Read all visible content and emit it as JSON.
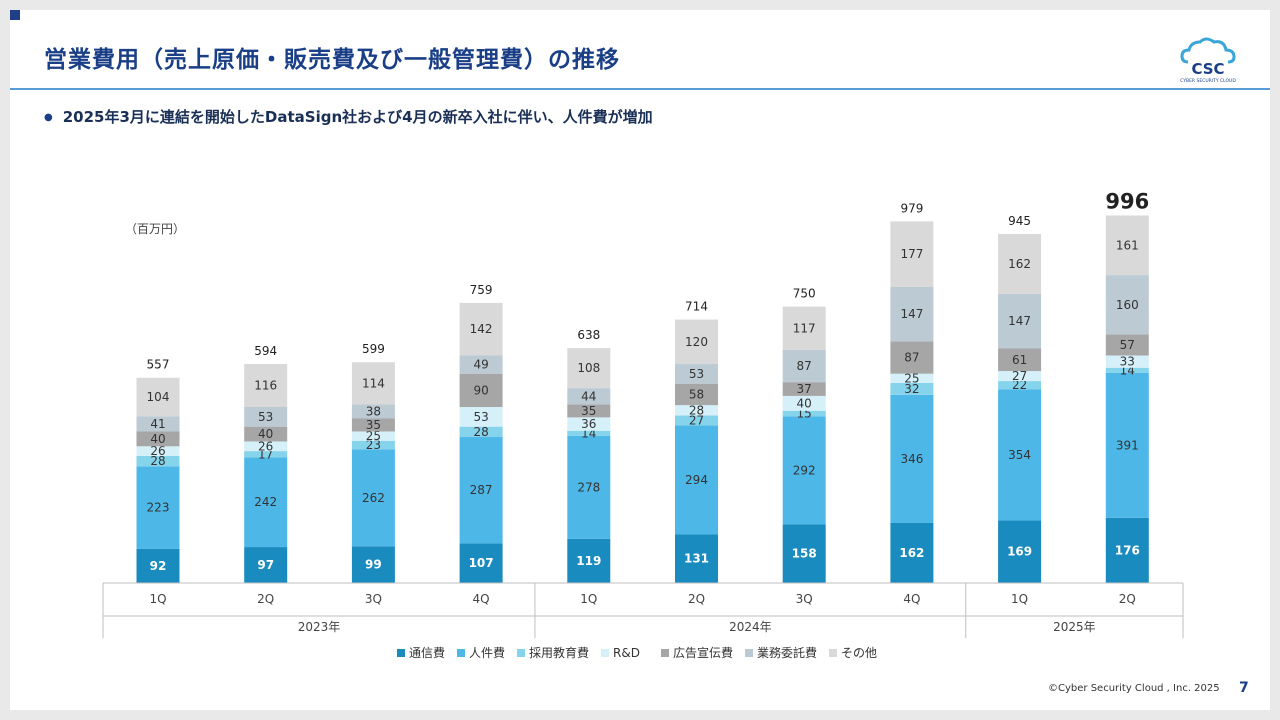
{
  "slide": {
    "title": "営業費用（売上原価・販売費及び一般管理費）の推移",
    "bullet": "2025年3月に連結を開始したDataSign社および4月の新卒入社に伴い、人件費が増加",
    "unit_label": "（百万円）",
    "footer": "©Cyber Security Cloud , Inc. 2025",
    "page_number": "7",
    "logo_text": "CSC",
    "logo_subtext": "CYBER SECURITY CLOUD"
  },
  "chart_data": {
    "type": "bar",
    "stacked": true,
    "categories": [
      "1Q",
      "2Q",
      "3Q",
      "4Q",
      "1Q",
      "2Q",
      "3Q",
      "4Q",
      "1Q",
      "2Q"
    ],
    "groups": [
      {
        "label": "2023年",
        "count": 4
      },
      {
        "label": "2024年",
        "count": 4
      },
      {
        "label": "2025年",
        "count": 2
      }
    ],
    "totals": [
      557,
      594,
      599,
      759,
      638,
      714,
      750,
      979,
      945,
      996
    ],
    "series": [
      {
        "name": "通信費",
        "color": "#1a8bbf",
        "label_color": "#ffffff",
        "values": [
          92,
          97,
          99,
          107,
          119,
          131,
          158,
          162,
          169,
          176
        ]
      },
      {
        "name": "人件費",
        "color": "#4db8e8",
        "label_color": "#333333",
        "values": [
          223,
          242,
          262,
          287,
          278,
          294,
          292,
          346,
          354,
          391
        ]
      },
      {
        "name": "採用教育費",
        "color": "#86d3ec",
        "label_color": "#333333",
        "values": [
          28,
          17,
          23,
          28,
          14,
          27,
          15,
          32,
          22,
          14
        ]
      },
      {
        "name": "R&D",
        "color": "#d6f0fa",
        "label_color": "#333333",
        "values": [
          26,
          26,
          25,
          53,
          36,
          28,
          40,
          25,
          27,
          33
        ]
      },
      {
        "name": "広告宣伝費",
        "color": "#a6a6a6",
        "label_color": "#333333",
        "values": [
          40,
          40,
          35,
          90,
          35,
          58,
          37,
          87,
          61,
          57
        ]
      },
      {
        "name": "業務委託費",
        "color": "#bccad4",
        "label_color": "#333333",
        "values": [
          41,
          53,
          38,
          49,
          44,
          53,
          87,
          147,
          147,
          160
        ]
      },
      {
        "name": "その他",
        "color": "#d9d9d9",
        "label_color": "#333333",
        "values": [
          104,
          116,
          114,
          142,
          108,
          120,
          117,
          177,
          162,
          161
        ]
      }
    ],
    "highlight_last_total": true,
    "ylim": [
      0,
      1000
    ],
    "grid": false,
    "legend_position": "bottom"
  }
}
